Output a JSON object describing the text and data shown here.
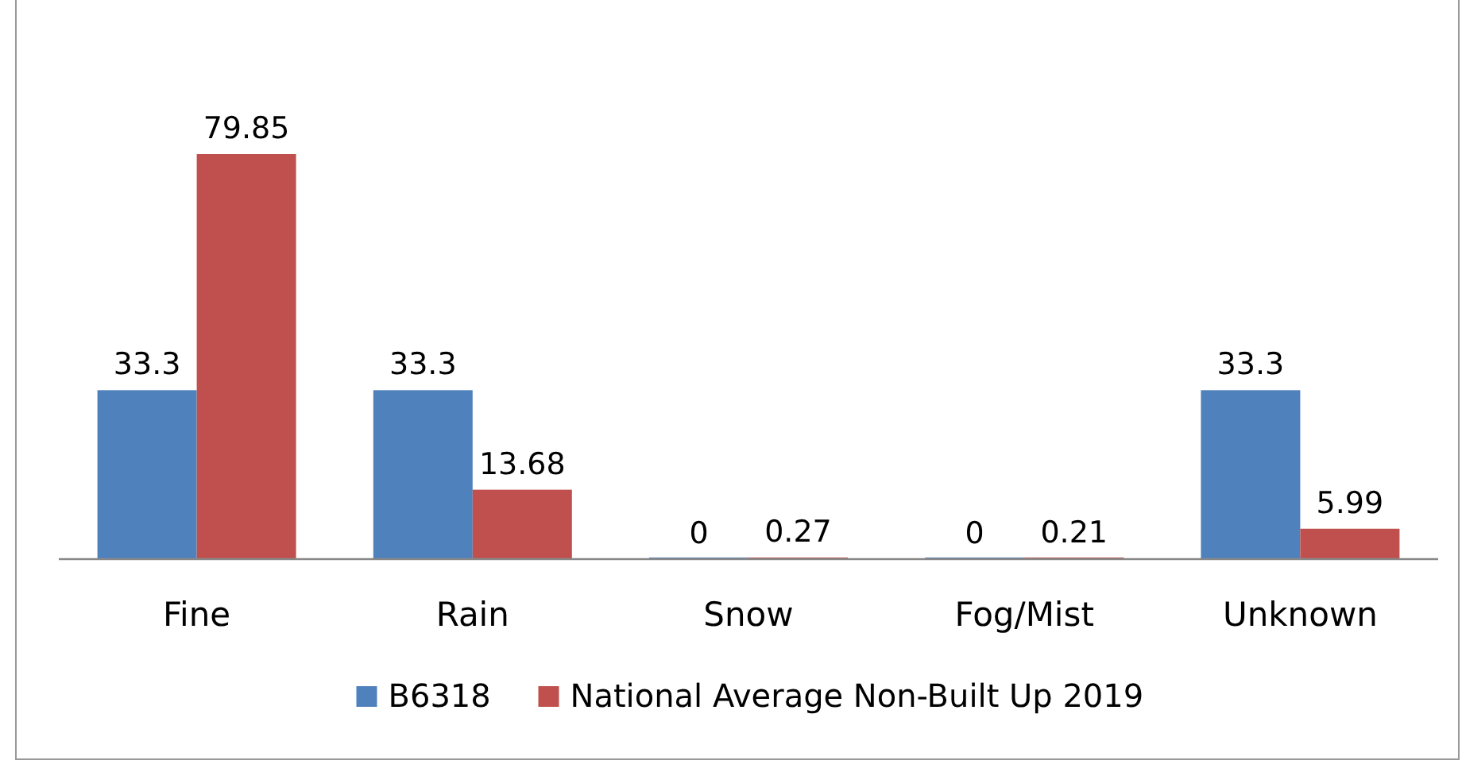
{
  "chart_data": {
    "type": "bar",
    "categories": [
      "Fine",
      "Rain",
      "Snow",
      "Fog/Mist",
      "Unknown"
    ],
    "series": [
      {
        "name": "B6318",
        "color": "#4f81bd",
        "values": [
          33.3,
          33.3,
          0,
          0,
          33.3
        ]
      },
      {
        "name": "National Average Non-Built Up 2019",
        "color": "#c0504d",
        "values": [
          79.85,
          13.68,
          0.27,
          0.21,
          5.99
        ]
      }
    ],
    "data_labels": true,
    "legend": "bottom"
  }
}
